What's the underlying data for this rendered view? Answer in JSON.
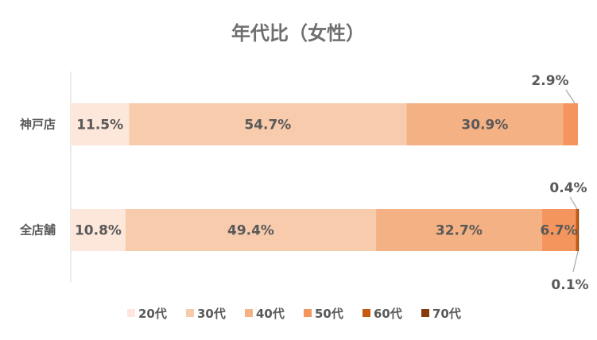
{
  "chart_data": {
    "type": "bar",
    "orientation": "horizontal",
    "stacked": "percent",
    "title": "年代比（女性）",
    "categories": [
      "神戸店",
      "全店舗"
    ],
    "series": [
      {
        "name": "20代",
        "values": [
          11.5,
          10.8
        ],
        "labels": [
          "11.5%",
          "10.8%"
        ],
        "color": "#fde6da"
      },
      {
        "name": "30代",
        "values": [
          54.7,
          49.4
        ],
        "labels": [
          "54.7%",
          "49.4%"
        ],
        "color": "#f8cbad"
      },
      {
        "name": "40代",
        "values": [
          30.9,
          32.7
        ],
        "labels": [
          "30.9%",
          "32.7%"
        ],
        "color": "#f4b183"
      },
      {
        "name": "50代",
        "values": [
          2.9,
          6.7
        ],
        "labels": [
          "2.9%",
          "6.7%"
        ],
        "color": "#f4955e"
      },
      {
        "name": "60代",
        "values": [
          0,
          0.4
        ],
        "labels": [
          "",
          "0.4%"
        ],
        "color": "#c55a11"
      },
      {
        "name": "70代",
        "values": [
          0,
          0.1
        ],
        "labels": [
          "",
          "0.1%"
        ],
        "color": "#843c0c"
      }
    ],
    "xlim": [
      0,
      100
    ],
    "legend": "bottom",
    "grid": false
  }
}
